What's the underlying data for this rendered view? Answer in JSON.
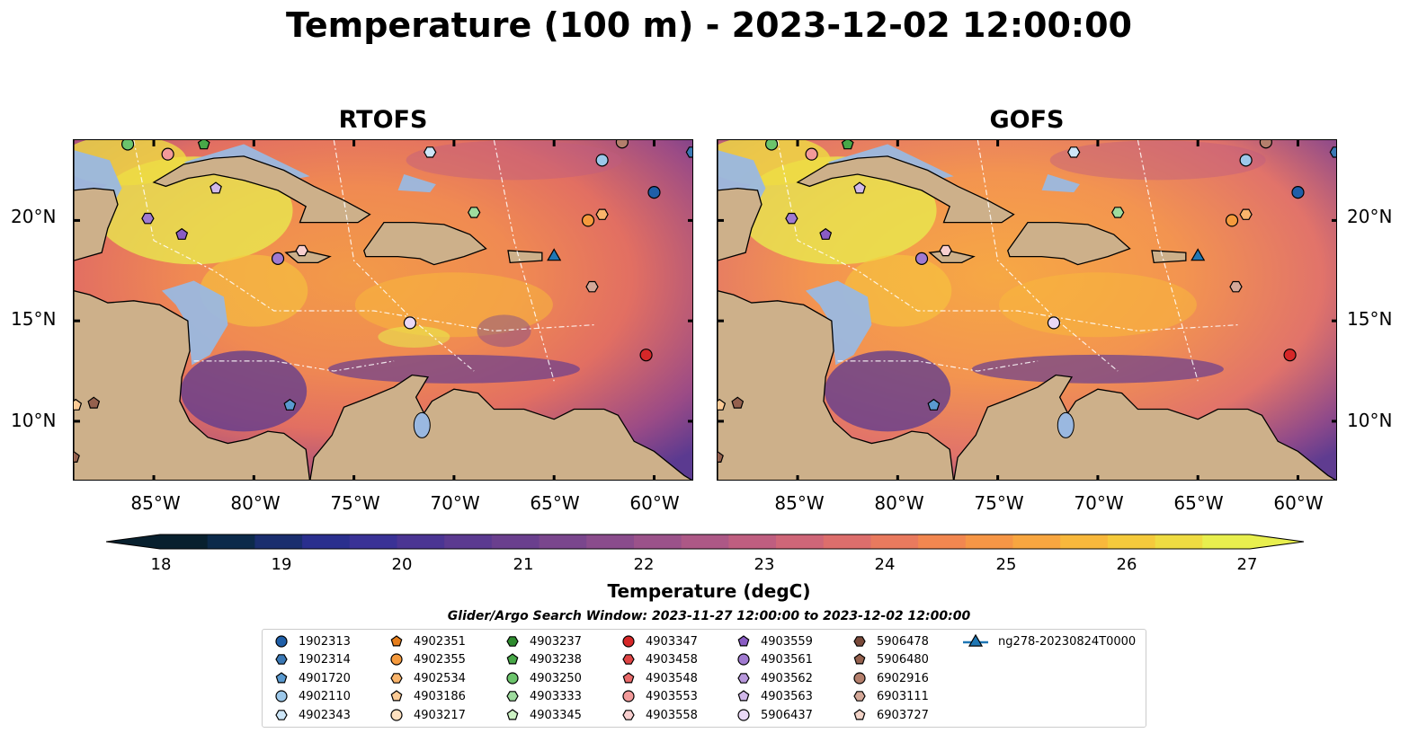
{
  "title": "Temperature (100 m) - 2023-12-02 12:00:00",
  "panels": [
    {
      "title": "RTOFS"
    },
    {
      "title": "GOFS"
    }
  ],
  "axes": {
    "lat_ticks": [
      "20°N",
      "15°N",
      "10°N"
    ],
    "lon_ticks": [
      "85°W",
      "80°W",
      "75°W",
      "70°W",
      "65°W",
      "60°W"
    ],
    "lat_range": [
      7.0,
      24.0
    ],
    "lon_range": [
      -89.0,
      -58.0
    ]
  },
  "colorbar": {
    "label": "Temperature (degC)",
    "ticks": [
      "18",
      "19",
      "20",
      "21",
      "22",
      "23",
      "24",
      "25",
      "26",
      "27"
    ],
    "range": [
      18,
      27
    ],
    "colors": [
      "#08202e",
      "#0c2a4a",
      "#1a2e6e",
      "#2a2f8e",
      "#3a3296",
      "#4b3593",
      "#5b3a90",
      "#6a3f8e",
      "#7a468d",
      "#8a4c8c",
      "#9b528a",
      "#ad5886",
      "#bf5e80",
      "#cf6678",
      "#dd6e6c",
      "#e97a5e",
      "#f28750",
      "#f69646",
      "#f8a640",
      "#f8b83c",
      "#f5ca3c",
      "#efdc42",
      "#e8ef4e"
    ]
  },
  "legend": {
    "title": "Glider/Argo Search Window: 2023-11-27 12:00:00 to 2023-12-02 12:00:00",
    "entries": [
      {
        "label": "1902313",
        "marker": "circle",
        "color": "#1f5fa8"
      },
      {
        "label": "1902314",
        "marker": "hexagon",
        "color": "#3a78b5"
      },
      {
        "label": "4901720",
        "marker": "pentagon",
        "color": "#5a9ad0"
      },
      {
        "label": "4902110",
        "marker": "circle",
        "color": "#9cc8ea"
      },
      {
        "label": "4902343",
        "marker": "hexagon",
        "color": "#cde6f8"
      },
      {
        "label": "4902351",
        "marker": "pentagon",
        "color": "#e67e1c"
      },
      {
        "label": "4902355",
        "marker": "circle",
        "color": "#f59a3d"
      },
      {
        "label": "4902534",
        "marker": "hexagon",
        "color": "#f9b46b"
      },
      {
        "label": "4903186",
        "marker": "pentagon",
        "color": "#fccb96"
      },
      {
        "label": "4903217",
        "marker": "circle",
        "color": "#fde0bf"
      },
      {
        "label": "4903237",
        "marker": "hexagon",
        "color": "#2e8b2e"
      },
      {
        "label": "4903238",
        "marker": "pentagon",
        "color": "#48a848"
      },
      {
        "label": "4903250",
        "marker": "circle",
        "color": "#6cc46c"
      },
      {
        "label": "4903333",
        "marker": "hexagon",
        "color": "#9edc9e"
      },
      {
        "label": "4903345",
        "marker": "pentagon",
        "color": "#cdf2c4"
      },
      {
        "label": "4903347",
        "marker": "circle",
        "color": "#d62728"
      },
      {
        "label": "4903458",
        "marker": "hexagon",
        "color": "#e04545"
      },
      {
        "label": "4903548",
        "marker": "pentagon",
        "color": "#ea6a6a"
      },
      {
        "label": "4903553",
        "marker": "circle",
        "color": "#f29a9a"
      },
      {
        "label": "4903558",
        "marker": "hexagon",
        "color": "#f8cfcf"
      },
      {
        "label": "4903559",
        "marker": "pentagon",
        "color": "#8a5cc4"
      },
      {
        "label": "4903561",
        "marker": "circle",
        "color": "#a07ad0"
      },
      {
        "label": "4903562",
        "marker": "hexagon",
        "color": "#b898dc"
      },
      {
        "label": "4903563",
        "marker": "pentagon",
        "color": "#d1b8ea"
      },
      {
        "label": "5906437",
        "marker": "circle",
        "color": "#ead8f6"
      },
      {
        "label": "5906478",
        "marker": "hexagon",
        "color": "#7a4a3a"
      },
      {
        "label": "5906480",
        "marker": "pentagon",
        "color": "#95614e"
      },
      {
        "label": "6902916",
        "marker": "circle",
        "color": "#b47f6c"
      },
      {
        "label": "6903111",
        "marker": "hexagon",
        "color": "#d4a898"
      },
      {
        "label": "6903727",
        "marker": "pentagon",
        "color": "#f3d4c8"
      },
      {
        "label": "ng278-20230824T0000",
        "marker": "triangle-line",
        "color": "#1f77b4"
      }
    ]
  },
  "markers": [
    {
      "lon": -86.3,
      "lat": 23.8,
      "color": "#6cc46c",
      "marker": "circle"
    },
    {
      "lon": -84.3,
      "lat": 23.3,
      "color": "#f29a9a",
      "marker": "circle"
    },
    {
      "lon": -82.5,
      "lat": 23.8,
      "color": "#48a848",
      "marker": "pentagon"
    },
    {
      "lon": -71.2,
      "lat": 23.4,
      "color": "#cde6f8",
      "marker": "hexagon"
    },
    {
      "lon": -62.6,
      "lat": 23.0,
      "color": "#9cc8ea",
      "marker": "circle"
    },
    {
      "lon": -58.1,
      "lat": 23.4,
      "color": "#3a78b5",
      "marker": "hexagon"
    },
    {
      "lon": -61.6,
      "lat": 23.9,
      "color": "#b47f6c",
      "marker": "circle"
    },
    {
      "lon": -60.0,
      "lat": 21.4,
      "color": "#1f5fa8",
      "marker": "circle"
    },
    {
      "lon": -81.9,
      "lat": 21.6,
      "color": "#d1b8ea",
      "marker": "pentagon"
    },
    {
      "lon": -85.3,
      "lat": 20.1,
      "color": "#a07ad0",
      "marker": "hexagon"
    },
    {
      "lon": -83.6,
      "lat": 19.3,
      "color": "#8a5cc4",
      "marker": "pentagon"
    },
    {
      "lon": -78.8,
      "lat": 18.1,
      "color": "#a07ad0",
      "marker": "circle"
    },
    {
      "lon": -77.6,
      "lat": 18.5,
      "color": "#f8cfcf",
      "marker": "hexagon"
    },
    {
      "lon": -69.0,
      "lat": 20.4,
      "color": "#9edc9e",
      "marker": "hexagon"
    },
    {
      "lon": -63.3,
      "lat": 20.0,
      "color": "#f59a3d",
      "marker": "circle"
    },
    {
      "lon": -62.6,
      "lat": 20.3,
      "color": "#f9b46b",
      "marker": "hexagon"
    },
    {
      "lon": -72.2,
      "lat": 14.9,
      "color": "#ead8f6",
      "marker": "circle"
    },
    {
      "lon": -63.1,
      "lat": 16.7,
      "color": "#d4a898",
      "marker": "hexagon"
    },
    {
      "lon": -60.4,
      "lat": 13.3,
      "color": "#d62728",
      "marker": "circle"
    },
    {
      "lon": -78.2,
      "lat": 10.8,
      "color": "#5a9ad0",
      "marker": "pentagon"
    },
    {
      "lon": -88.9,
      "lat": 10.8,
      "color": "#fccb96",
      "marker": "pentagon"
    },
    {
      "lon": -88.0,
      "lat": 10.9,
      "color": "#95614e",
      "marker": "pentagon"
    },
    {
      "lon": -89.0,
      "lat": 8.2,
      "color": "#95614e",
      "marker": "pentagon"
    },
    {
      "lon": -65.0,
      "lat": 18.2,
      "color": "#1f77b4",
      "marker": "triangle"
    }
  ]
}
